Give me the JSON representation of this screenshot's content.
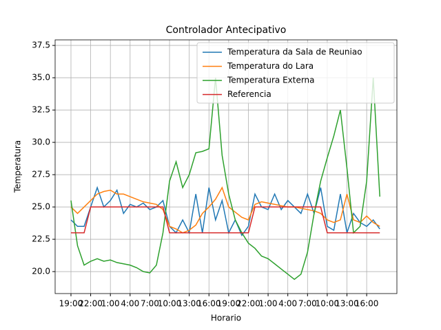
{
  "chart_data": {
    "type": "line",
    "title": "Controlador Antecipativo",
    "x_label": "Horario",
    "y_label": "Temperatura",
    "x": [
      0,
      1,
      2,
      3,
      4,
      5,
      6,
      7,
      8,
      9,
      10,
      11,
      12,
      13,
      14,
      15,
      16,
      17,
      18,
      19,
      20,
      21,
      22,
      23,
      24,
      25,
      26,
      27,
      28,
      29,
      30,
      31,
      32,
      33,
      34,
      35,
      36,
      37,
      38,
      39,
      40,
      41,
      42,
      43,
      44,
      45,
      46,
      47
    ],
    "series": [
      {
        "name": "Temperatura da Sala de Reuniao",
        "color": "#1f77b4",
        "values": [
          24,
          23.5,
          23.5,
          25,
          26.5,
          25,
          25.5,
          26.3,
          24.5,
          25.2,
          25,
          25.3,
          24.8,
          25,
          25.5,
          23.5,
          23,
          24,
          23,
          26,
          23,
          26.5,
          24,
          25.5,
          23,
          24,
          22.8,
          23.5,
          26,
          25,
          24.8,
          26,
          24.8,
          25.5,
          25,
          24.5,
          26,
          24.5,
          26.5,
          23.5,
          23.2,
          26,
          23,
          24.5,
          23.8,
          23.5,
          24,
          23.3
        ]
      },
      {
        "name": "Temperatura do Lara",
        "color": "#ff7f0e",
        "values": [
          25,
          24.5,
          25,
          25.5,
          26,
          26.2,
          26.3,
          26,
          26,
          25.8,
          25.6,
          25.4,
          25.3,
          25.2,
          24.8,
          23.5,
          23.3,
          23,
          23.2,
          23.6,
          24.5,
          25,
          25.6,
          26.5,
          25,
          24.6,
          24.2,
          24,
          25.2,
          25.4,
          25.3,
          25.2,
          25.1,
          25,
          25,
          24.9,
          24.8,
          24.7,
          24.5,
          24,
          23.8,
          24,
          26,
          24,
          23.8,
          24.3,
          23.8,
          23.5
        ]
      },
      {
        "name": "Temperatura Externa",
        "color": "#2ca02c",
        "values": [
          25.5,
          22,
          20.5,
          20.8,
          21,
          20.8,
          20.9,
          20.7,
          20.6,
          20.5,
          20.3,
          20,
          19.9,
          20.5,
          23,
          27,
          28.5,
          26.5,
          27.5,
          29.2,
          29.3,
          29.5,
          35,
          29,
          26,
          24,
          23,
          22.2,
          21.8,
          21.2,
          21,
          20.6,
          20.2,
          19.8,
          19.4,
          19.8,
          21.5,
          24.5,
          27,
          28.8,
          30.5,
          32.5,
          28,
          23,
          23.5,
          27,
          35,
          25.8
        ]
      },
      {
        "name": "Referencia",
        "color": "#d62728",
        "values": [
          23,
          23,
          23,
          25,
          25,
          25,
          25,
          25,
          25,
          25,
          25,
          25,
          25,
          25,
          25,
          23,
          23,
          23,
          23,
          23,
          23,
          23,
          23,
          23,
          23,
          23,
          23,
          23,
          25,
          25,
          25,
          25,
          25,
          25,
          25,
          25,
          25,
          25,
          25,
          23,
          23,
          23,
          23,
          23,
          23,
          23,
          23,
          23
        ]
      }
    ],
    "xlim": [
      -2.41,
      49.6
    ],
    "ylim": [
      18.3,
      37.93
    ],
    "xticks": [
      {
        "value": 0,
        "label": "19:00"
      },
      {
        "value": 3,
        "label": "22:00"
      },
      {
        "value": 6,
        "label": "1:00"
      },
      {
        "value": 9,
        "label": "4:00"
      },
      {
        "value": 12,
        "label": "7:00"
      },
      {
        "value": 15,
        "label": "10:00"
      },
      {
        "value": 18,
        "label": "13:00"
      },
      {
        "value": 21,
        "label": "16:00"
      },
      {
        "value": 24,
        "label": "19:00"
      },
      {
        "value": 27,
        "label": "22:00"
      },
      {
        "value": 30,
        "label": "1:00"
      },
      {
        "value": 33,
        "label": "4:00"
      },
      {
        "value": 36,
        "label": "7:00"
      },
      {
        "value": 39,
        "label": "10:00"
      },
      {
        "value": 42,
        "label": "13:00"
      },
      {
        "value": 45,
        "label": "16:00"
      }
    ],
    "yticks": [
      {
        "value": 20,
        "label": "20.0"
      },
      22.5,
      {
        "value": 25,
        "label": "25.0"
      },
      27.5,
      {
        "value": 30,
        "label": "30.0"
      },
      32.5,
      {
        "value": 35,
        "label": "35.0"
      },
      37.5
    ],
    "grid": true,
    "legend": "upper right"
  }
}
